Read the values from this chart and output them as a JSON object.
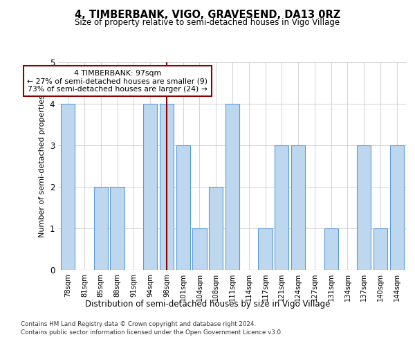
{
  "title": "4, TIMBERBANK, VIGO, GRAVESEND, DA13 0RZ",
  "subtitle": "Size of property relative to semi-detached houses in Vigo Village",
  "xlabel": "Distribution of semi-detached houses by size in Vigo Village",
  "ylabel": "Number of semi-detached properties",
  "categories": [
    "78sqm",
    "81sqm",
    "85sqm",
    "88sqm",
    "91sqm",
    "94sqm",
    "98sqm",
    "101sqm",
    "104sqm",
    "108sqm",
    "111sqm",
    "114sqm",
    "117sqm",
    "121sqm",
    "124sqm",
    "127sqm",
    "131sqm",
    "134sqm",
    "137sqm",
    "140sqm",
    "144sqm"
  ],
  "values": [
    4,
    0,
    2,
    2,
    0,
    4,
    4,
    3,
    1,
    2,
    4,
    0,
    1,
    3,
    3,
    0,
    1,
    0,
    3,
    1,
    3
  ],
  "highlight_index": 6,
  "highlight_label": "4 TIMBERBANK: 97sqm",
  "highlight_smaller": "← 27% of semi-detached houses are smaller (9)",
  "highlight_larger": "73% of semi-detached houses are larger (24) →",
  "bar_color": "#BDD7EE",
  "bar_edgecolor": "#5B9BD5",
  "highlight_line_color": "#8B0000",
  "annotation_box_edgecolor": "#8B0000",
  "ylim": [
    0,
    5
  ],
  "yticks": [
    0,
    1,
    2,
    3,
    4,
    5
  ],
  "background_color": "#FFFFFF",
  "footer1": "Contains HM Land Registry data © Crown copyright and database right 2024.",
  "footer2": "Contains public sector information licensed under the Open Government Licence v3.0."
}
